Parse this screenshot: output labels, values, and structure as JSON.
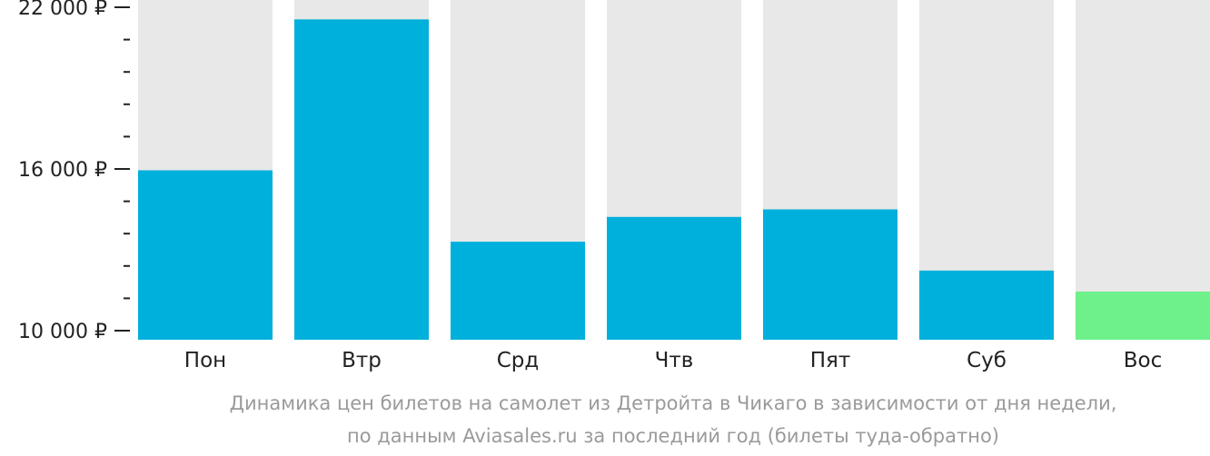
{
  "chart_data": {
    "type": "bar",
    "categories": [
      "Пон",
      "Втр",
      "Срд",
      "Чтв",
      "Пят",
      "Суб",
      "Вос"
    ],
    "values": [
      15950,
      21550,
      13300,
      14220,
      14500,
      12230,
      11450
    ],
    "ylim": [
      10000,
      22000
    ],
    "yticks": [
      {
        "value": 22000,
        "label": "22 000 ₽"
      },
      {
        "value": 16000,
        "label": "16 000 ₽"
      },
      {
        "value": 10000,
        "label": "10 000 ₽"
      }
    ],
    "minor_tick_step": 1200,
    "colors": {
      "bar": "#00b0dc",
      "bar_min": "#6ef08a",
      "background": "#e8e8e8",
      "axis": "#222222"
    },
    "caption": [
      "Динамика цен билетов на самолет из Детройта в Чикаго в зависимости от дня недели,",
      "по данным Aviasales.ru за последний год (билеты туда-обратно)"
    ]
  }
}
